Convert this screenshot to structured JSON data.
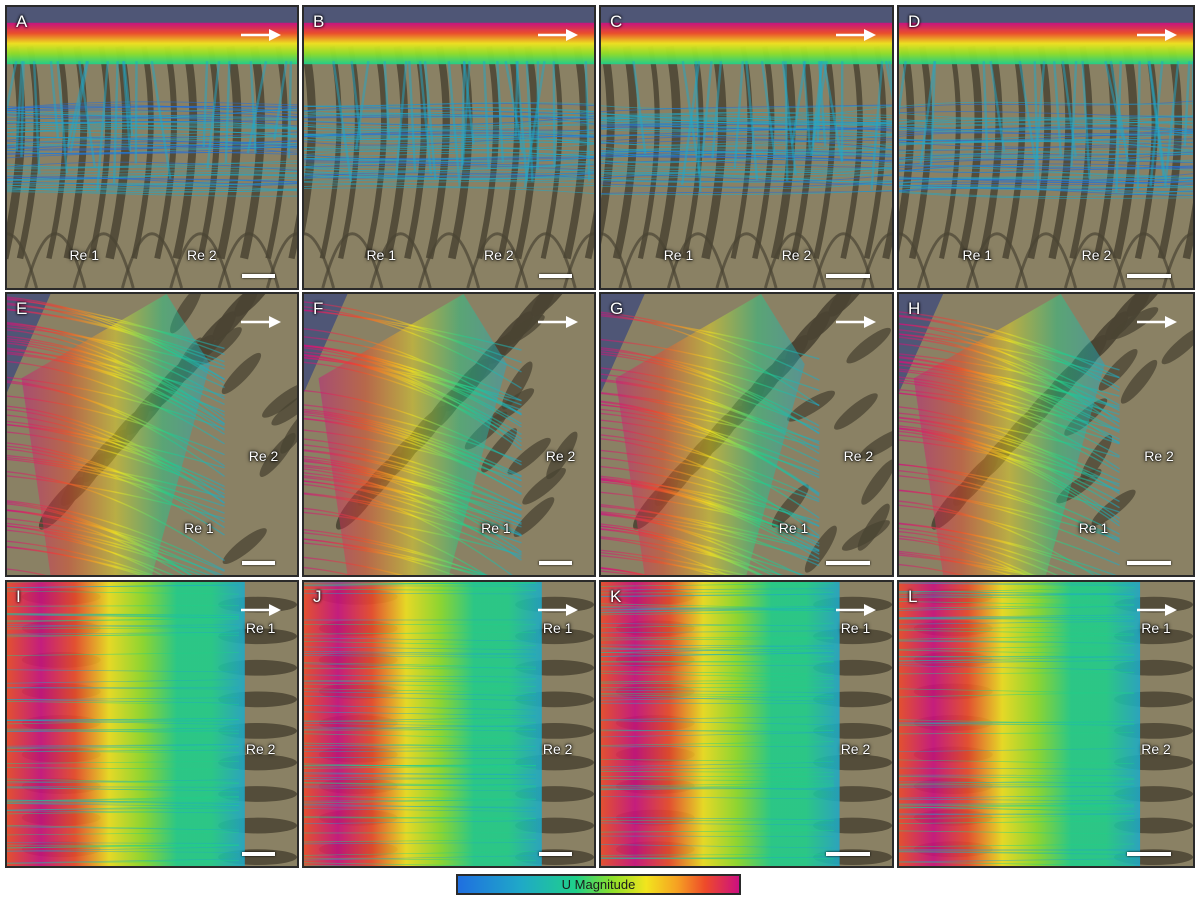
{
  "panels": [
    {
      "label": "A",
      "view": "top",
      "regions": [
        "Re 1",
        "Re 2"
      ],
      "scale_short": true
    },
    {
      "label": "B",
      "view": "top",
      "regions": [
        "Re 1",
        "Re 2"
      ],
      "scale_short": true
    },
    {
      "label": "C",
      "view": "top",
      "regions": [
        "Re 1",
        "Re 2"
      ],
      "scale_short": false
    },
    {
      "label": "D",
      "view": "top",
      "regions": [
        "Re 1",
        "Re 2"
      ],
      "scale_short": false
    },
    {
      "label": "E",
      "view": "oblique",
      "regions": [
        "Re 2",
        "Re 1"
      ],
      "scale_short": true
    },
    {
      "label": "F",
      "view": "oblique",
      "regions": [
        "Re 2",
        "Re 1"
      ],
      "scale_short": true
    },
    {
      "label": "G",
      "view": "oblique",
      "regions": [
        "Re 2",
        "Re 1"
      ],
      "scale_short": false
    },
    {
      "label": "H",
      "view": "oblique",
      "regions": [
        "Re 2",
        "Re 1"
      ],
      "scale_short": false
    },
    {
      "label": "I",
      "view": "side",
      "regions": [
        "Re 1",
        "Re 2"
      ],
      "scale_short": true
    },
    {
      "label": "J",
      "view": "side",
      "regions": [
        "Re 1",
        "Re 2"
      ],
      "scale_short": true
    },
    {
      "label": "K",
      "view": "side",
      "regions": [
        "Re 1",
        "Re 2"
      ],
      "scale_short": false
    },
    {
      "label": "L",
      "view": "side",
      "regions": [
        "Re 1",
        "Re 2"
      ],
      "scale_short": false
    }
  ],
  "colorbar": {
    "label": "U Magnitude",
    "colors": [
      "#1f6fe0",
      "#1fa8c8",
      "#1fd08a",
      "#8ee02a",
      "#f2e41e",
      "#f6a122",
      "#ee4a2a",
      "#cc1080"
    ]
  },
  "colors": {
    "tissue": "#8a8164",
    "tissue_dark": "#4a4433",
    "background": "#4f5676",
    "label": "#ffffff"
  }
}
